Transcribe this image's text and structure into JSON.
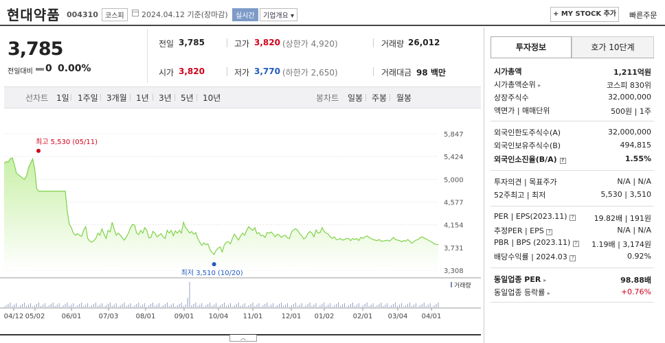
{
  "header": {
    "name": "현대약품",
    "code": "004310",
    "market": "코스피",
    "date": "2024.04.12 기준(장마감)",
    "realtime": "실시간",
    "company_info": "기업개요 ▾",
    "mystock": "+ MY STOCK 추가",
    "quick_order": "빠른주문"
  },
  "summary": {
    "price": "3,785",
    "change_label": "전일대비",
    "change": "0",
    "change_pct": "0.00%",
    "prev_label": "전일",
    "prev": "3,785",
    "high_label": "고가",
    "high": "3,820",
    "upper_limit": "(상한가 4,920)",
    "volume_label": "거래량",
    "volume": "26,012",
    "open_label": "시가",
    "open": "3,820",
    "low_label": "저가",
    "low": "3,770",
    "lower_limit": "(하한가 2,650)",
    "amount_label": "거래대금",
    "amount": "98 백만"
  },
  "periods": {
    "line_label": "선차트",
    "line": [
      "1일",
      "1주일",
      "3개월",
      "1년",
      "3년",
      "5년",
      "10년"
    ],
    "selected": "1년",
    "candle_label": "봉차트",
    "candle": [
      "일봉",
      "주봉",
      "월봉"
    ]
  },
  "chart_data": {
    "type": "area",
    "y_ticks": [
      "5,847",
      "5,424",
      "5,000",
      "4,577",
      "4,154",
      "3,731",
      "3,308"
    ],
    "ylim": [
      3308,
      5847
    ],
    "x_ticks": [
      "04/12",
      "05/02",
      "06/01",
      "07/03",
      "08/01",
      "09/01",
      "10/04",
      "11/01",
      "12/01",
      "01/02",
      "02/01",
      "03/04",
      "04/01"
    ],
    "max_label": "최고 5,530 (05/11)",
    "min_label": "최저 3,510 (10/20)",
    "volume_label": "거래량",
    "colors": {
      "line": "#7ed146",
      "max": "#d0011b",
      "min": "#1f5bbf",
      "fill_top": "#c9f0a8",
      "fill_bottom": "#ffffff"
    },
    "series": [
      {
        "values": [
          5300,
          5330,
          5320,
          5380,
          5400,
          5280,
          5120,
          5080,
          5060,
          5020,
          5000,
          5060,
          5220,
          5300,
          5380,
          5200,
          4820,
          4780,
          4780,
          4780,
          4780,
          4780,
          4780,
          4780,
          4780,
          4780,
          4780,
          4780,
          4780,
          4780,
          4780,
          4400,
          4160,
          4100,
          4000,
          3960,
          3990,
          3960,
          3940,
          4050,
          4120,
          3900,
          3850,
          3830,
          3860,
          3900,
          4000,
          3960,
          4080,
          3980,
          3900,
          4050,
          4020,
          4200,
          4070,
          3960,
          4000,
          3960,
          3910,
          3870,
          3930,
          4000,
          4100,
          4160,
          4150,
          4000,
          3970,
          4050,
          4000,
          4100,
          4050,
          3910,
          3920,
          4030,
          4000,
          3930,
          3960,
          3990,
          3930,
          3900,
          4050,
          4000,
          4050,
          3950,
          4040,
          4000,
          4050,
          4000,
          4200,
          4100,
          4060,
          4000,
          4030,
          3980,
          4010,
          3900,
          3830,
          3770,
          3820,
          3780,
          3800,
          3690,
          3640,
          3600,
          3680,
          3720,
          3740,
          3650,
          3780,
          3830,
          3840,
          3800,
          3900,
          3980,
          3920,
          3870,
          3950,
          4000,
          3960,
          4050,
          4120,
          4080,
          4050,
          4100,
          3990,
          4010,
          3950,
          3960,
          3920,
          4010,
          4000,
          4020,
          3980,
          3930,
          3980,
          3960,
          3920,
          3950,
          3960,
          3910,
          3900,
          4020,
          4060,
          4080,
          4050,
          3990,
          3950,
          3890,
          3920,
          3990,
          4030,
          4000,
          3930,
          4060,
          4000,
          4010,
          4100,
          4030,
          4000,
          3980,
          3930,
          3900,
          3930,
          3880,
          3880,
          3900,
          3870,
          3880,
          3900,
          3900,
          3860,
          3900,
          3880,
          3900,
          3860,
          3920,
          3900,
          3930,
          3950,
          3920,
          3900,
          3880,
          3870,
          3860,
          3880,
          3850,
          3850,
          3860,
          3870,
          3850,
          3880,
          3920,
          3880,
          3870,
          3860,
          3840,
          3860,
          3850,
          3880,
          3850,
          3810,
          3840,
          3870,
          3880,
          3910,
          3930,
          3910,
          3890,
          3870,
          3850,
          3830,
          3800,
          3790,
          3785
        ]
      }
    ]
  },
  "panel": {
    "tab_info": "투자정보",
    "tab_quote": "호가 10단계",
    "market_cap_label": "시가총액",
    "market_cap": "1,211억원",
    "market_cap_rank_label": "시가총액순위",
    "market_cap_rank": "코스피 830위",
    "shares_label": "상장주식수",
    "shares": "32,000,000",
    "par_label": "액면가 | 매매단위",
    "par": "500원 | 1주",
    "foreign_limit_label": "외국인한도주식수(A)",
    "foreign_limit": "32,000,000",
    "foreign_hold_label": "외국인보유주식수(B)",
    "foreign_hold": "494,815",
    "foreign_ratio_label": "외국인소진율(B/A)",
    "foreign_ratio": "1.55%",
    "opinion_label": "투자의견 | 목표주가",
    "opinion": "N/A | N/A",
    "w52_label": "52주최고 | 최저",
    "w52": "5,530 | 3,510",
    "per_label": "PER | EPS(2023.11)",
    "per": "19.82배 | 191원",
    "est_per_label": "추정PER | EPS",
    "est_per": "N/A | N/A",
    "pbr_label": "PBR | BPS (2023.11)",
    "pbr": "1.19배 | 3,174원",
    "div_label": "배당수익률 | 2024.03",
    "div": "0.92%",
    "sector_per_label": "동일업종 PER",
    "sector_per": "98.88배",
    "sector_rate_label": "동일업종 등락률",
    "sector_rate": "+0.76%"
  }
}
